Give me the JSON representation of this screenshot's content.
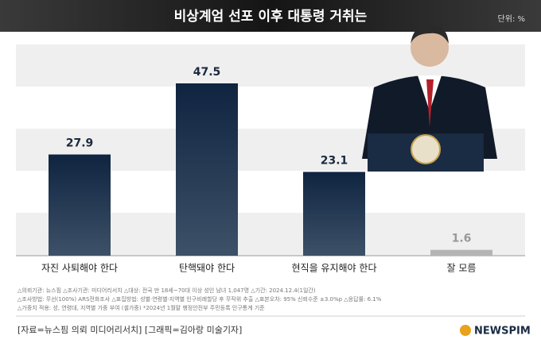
{
  "chart_data": {
    "type": "bar",
    "title": "비상계엄 선포 이후 대통령 거취는",
    "unit": "단위: %",
    "categories": [
      "자진 사퇴해야 한다",
      "탄핵돼야 한다",
      "현직을 유지해야 한다",
      "잘 모름"
    ],
    "values": [
      27.9,
      47.5,
      23.1,
      1.6
    ],
    "colors": [
      "#1c3352",
      "#1c3352",
      "#1c3352",
      "#b4b4b4"
    ],
    "notes": [
      "△의뢰기관: 뉴스핌  △조사기관: 미디어리서치  △대상: 전국 만 18세~70대 이상 성인 남녀 1,047명  △기간: 2024.12.4(1일간)",
      "△조사방법: 무선(100%) ARS전화조사  △표집방법: 성별·연령별·지역별 인구비례할당 후 무작위 추출  △표본오차: 95% 신뢰수준 ±3.0%p  △응답률: 6.1%",
      "△가중치 적용: 성, 연령대, 지역별 가중 부여 (셀가중) *2024년 1월말 행정안전부 주민등록 인구통계 기준"
    ],
    "source": "[자료=뉴스핌 의뢰 미디어리서치] [그래픽=김아랑 미술기자]",
    "logo": "NEWSPIM"
  }
}
